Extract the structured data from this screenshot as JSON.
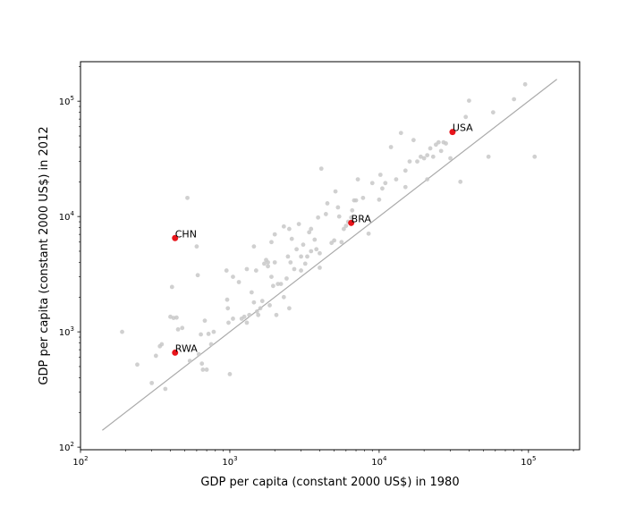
{
  "chart_data": {
    "type": "scatter",
    "xlabel": "GDP per capita (constant 2000 US$) in 1980",
    "ylabel": "GDP per capita (constant 2000 US$) in 2012",
    "xscale": "log",
    "yscale": "log",
    "xlim": [
      100,
      220000
    ],
    "ylim": [
      95,
      220000
    ],
    "x_ticks": [
      {
        "base": "10",
        "exp": "2",
        "value": 100
      },
      {
        "base": "10",
        "exp": "3",
        "value": 1000
      },
      {
        "base": "10",
        "exp": "4",
        "value": 10000
      },
      {
        "base": "10",
        "exp": "5",
        "value": 100000
      }
    ],
    "y_ticks": [
      {
        "base": "10",
        "exp": "2",
        "value": 100
      },
      {
        "base": "10",
        "exp": "3",
        "value": 1000
      },
      {
        "base": "10",
        "exp": "4",
        "value": 10000
      },
      {
        "base": "10",
        "exp": "5",
        "value": 100000
      }
    ],
    "grid": false,
    "reference_line": {
      "kind": "y = x",
      "from": 140,
      "to": 155000,
      "color": "#aaaaaa"
    },
    "background_points_color": "#c8c8c8",
    "highlight_color": "#e8141b",
    "background_points": [
      [
        190,
        1000
      ],
      [
        240,
        520
      ],
      [
        300,
        360
      ],
      [
        320,
        620
      ],
      [
        340,
        750
      ],
      [
        350,
        780
      ],
      [
        370,
        320
      ],
      [
        400,
        1350
      ],
      [
        410,
        2450
      ],
      [
        420,
        1320
      ],
      [
        440,
        1330
      ],
      [
        450,
        1050
      ],
      [
        480,
        1080
      ],
      [
        520,
        14500
      ],
      [
        540,
        560
      ],
      [
        600,
        5500
      ],
      [
        610,
        3100
      ],
      [
        620,
        640
      ],
      [
        640,
        950
      ],
      [
        650,
        530
      ],
      [
        660,
        470
      ],
      [
        680,
        1250
      ],
      [
        700,
        470
      ],
      [
        720,
        960
      ],
      [
        750,
        780
      ],
      [
        780,
        1000
      ],
      [
        950,
        3400
      ],
      [
        960,
        1900
      ],
      [
        970,
        1600
      ],
      [
        980,
        1200
      ],
      [
        1000,
        430
      ],
      [
        1050,
        1300
      ],
      [
        1050,
        3000
      ],
      [
        1150,
        2700
      ],
      [
        1200,
        1300
      ],
      [
        1250,
        1350
      ],
      [
        1300,
        1200
      ],
      [
        1300,
        3500
      ],
      [
        1350,
        1400
      ],
      [
        1400,
        2200
      ],
      [
        1450,
        5500
      ],
      [
        1450,
        1800
      ],
      [
        1500,
        3400
      ],
      [
        1520,
        1500
      ],
      [
        1550,
        1400
      ],
      [
        1600,
        1600
      ],
      [
        1650,
        1850
      ],
      [
        1700,
        3900
      ],
      [
        1750,
        4200
      ],
      [
        1800,
        4000
      ],
      [
        1800,
        3700
      ],
      [
        1850,
        1700
      ],
      [
        1900,
        6000
      ],
      [
        1900,
        3000
      ],
      [
        1950,
        2500
      ],
      [
        2000,
        4000
      ],
      [
        2000,
        7000
      ],
      [
        2050,
        1400
      ],
      [
        2100,
        2600
      ],
      [
        2200,
        2600
      ],
      [
        2300,
        8200
      ],
      [
        2300,
        2000
      ],
      [
        2400,
        2900
      ],
      [
        2450,
        4500
      ],
      [
        2500,
        7800
      ],
      [
        2500,
        1600
      ],
      [
        2550,
        4000
      ],
      [
        2600,
        6400
      ],
      [
        2700,
        3500
      ],
      [
        2800,
        5200
      ],
      [
        2900,
        8600
      ],
      [
        3000,
        4500
      ],
      [
        3000,
        3400
      ],
      [
        3100,
        5700
      ],
      [
        3200,
        3900
      ],
      [
        3300,
        4500
      ],
      [
        3400,
        7300
      ],
      [
        3500,
        7800
      ],
      [
        3500,
        5000
      ],
      [
        3700,
        6300
      ],
      [
        3800,
        5200
      ],
      [
        3900,
        9800
      ],
      [
        4000,
        4800
      ],
      [
        4000,
        3600
      ],
      [
        4100,
        26000
      ],
      [
        4400,
        10500
      ],
      [
        4500,
        13000
      ],
      [
        4800,
        5900
      ],
      [
        5000,
        6200
      ],
      [
        5100,
        16500
      ],
      [
        5300,
        12000
      ],
      [
        5400,
        10000
      ],
      [
        5600,
        6000
      ],
      [
        5800,
        7800
      ],
      [
        6000,
        8300
      ],
      [
        6200,
        9000
      ],
      [
        6500,
        9800
      ],
      [
        6600,
        11300
      ],
      [
        6800,
        13800
      ],
      [
        7000,
        13800
      ],
      [
        7200,
        21000
      ],
      [
        7800,
        14500
      ],
      [
        8500,
        7100
      ],
      [
        9000,
        19500
      ],
      [
        10000,
        14000
      ],
      [
        10200,
        23000
      ],
      [
        10500,
        17500
      ],
      [
        11000,
        19500
      ],
      [
        12000,
        40000
      ],
      [
        13000,
        21000
      ],
      [
        14000,
        53000
      ],
      [
        15000,
        25000
      ],
      [
        15000,
        18000
      ],
      [
        16000,
        30000
      ],
      [
        17000,
        46000
      ],
      [
        18000,
        30000
      ],
      [
        19000,
        33000
      ],
      [
        20000,
        32000
      ],
      [
        21000,
        34000
      ],
      [
        21000,
        21000
      ],
      [
        22000,
        39000
      ],
      [
        23000,
        33000
      ],
      [
        24000,
        42000
      ],
      [
        25000,
        44000
      ],
      [
        26000,
        37000
      ],
      [
        27000,
        44000
      ],
      [
        28000,
        43000
      ],
      [
        30000,
        32000
      ],
      [
        35000,
        20000
      ],
      [
        38000,
        73000
      ],
      [
        40000,
        101000
      ],
      [
        54000,
        33000
      ],
      [
        58000,
        80000
      ],
      [
        80000,
        104000
      ],
      [
        95000,
        140000
      ],
      [
        110000,
        33000
      ]
    ],
    "highlighted": [
      {
        "label": "CHN",
        "x": 430,
        "y": 6500
      },
      {
        "label": "RWA",
        "x": 430,
        "y": 660
      },
      {
        "label": "BRA",
        "x": 6500,
        "y": 8800
      },
      {
        "label": "USA",
        "x": 31000,
        "y": 54000
      }
    ]
  }
}
